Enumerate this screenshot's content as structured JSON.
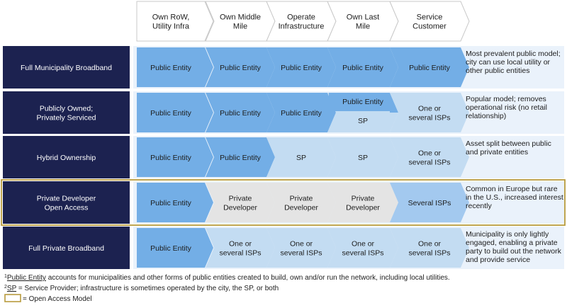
{
  "colors": {
    "navy": "#1c2250",
    "public": "#73aee6",
    "isp": "#c3dcf2",
    "isp_strong": "#a3c9ef",
    "developer": "#e4e4e4",
    "header_border": "#c9c9c9",
    "open_access": "#b89b3d"
  },
  "headers": [
    [
      "Own RoW,",
      "Utility Infra"
    ],
    [
      "Own Middle",
      "Mile"
    ],
    [
      "Operate",
      "Infrastructure"
    ],
    [
      "Own Last",
      "Mile"
    ],
    [
      "Service",
      "Customer"
    ]
  ],
  "rows": [
    {
      "label": [
        "Full Municipality Broadband"
      ],
      "open_access": false,
      "cells": [
        {
          "type": "public",
          "lines": [
            "Public Entity"
          ]
        },
        {
          "type": "public",
          "lines": [
            "Public Entity"
          ]
        },
        {
          "type": "public",
          "lines": [
            "Public Entity"
          ]
        },
        {
          "type": "public",
          "lines": [
            "Public Entity"
          ]
        },
        {
          "type": "public",
          "lines": [
            "Public Entity"
          ]
        }
      ],
      "description": [
        "Most prevalent public model;",
        "city can use local utility or",
        "other public entities"
      ]
    },
    {
      "label": [
        "Publicly Owned;",
        "Privately Serviced"
      ],
      "open_access": false,
      "cells": [
        {
          "type": "public",
          "lines": [
            "Public Entity"
          ]
        },
        {
          "type": "public",
          "lines": [
            "Public Entity"
          ]
        },
        {
          "type": "public",
          "lines": [
            "Public Entity"
          ]
        },
        {
          "type": "split",
          "top": "Public Entity",
          "bottom": "SP"
        },
        {
          "type": "isp",
          "lines": [
            "One or",
            "several ISPs"
          ]
        }
      ],
      "description": [
        "Popular model; removes",
        "operational risk (no retail",
        "relationship)"
      ]
    },
    {
      "label": [
        "Hybrid Ownership"
      ],
      "open_access": false,
      "cells": [
        {
          "type": "public",
          "lines": [
            "Public Entity"
          ]
        },
        {
          "type": "public",
          "lines": [
            "Public Entity"
          ]
        },
        {
          "type": "isp",
          "lines": [
            "SP"
          ]
        },
        {
          "type": "isp",
          "lines": [
            "SP"
          ]
        },
        {
          "type": "isp",
          "lines": [
            "One or",
            "several ISPs"
          ]
        }
      ],
      "description": [
        "Asset split between public",
        "and private entities"
      ]
    },
    {
      "label": [
        "Private Developer",
        "Open Access"
      ],
      "open_access": true,
      "cells": [
        {
          "type": "public",
          "lines": [
            "Public Entity"
          ]
        },
        {
          "type": "developer",
          "lines": [
            "Private",
            "Developer"
          ]
        },
        {
          "type": "developer",
          "lines": [
            "Private",
            "Developer"
          ]
        },
        {
          "type": "developer",
          "lines": [
            "Private",
            "Developer"
          ]
        },
        {
          "type": "isp_strong",
          "lines": [
            "Several ISPs"
          ]
        }
      ],
      "description": [
        "Common in Europe but rare",
        "in the U.S., increased interest",
        "recently"
      ]
    },
    {
      "label": [
        "Full Private Broadband"
      ],
      "open_access": false,
      "cells": [
        {
          "type": "public",
          "lines": [
            "Public Entity"
          ]
        },
        {
          "type": "isp",
          "lines": [
            "One or",
            "several ISPs"
          ]
        },
        {
          "type": "isp",
          "lines": [
            "One or",
            "several ISPs"
          ]
        },
        {
          "type": "isp",
          "lines": [
            "One or",
            "several ISPs"
          ]
        },
        {
          "type": "isp",
          "lines": [
            "One or",
            "several ISPs"
          ]
        }
      ],
      "description": [
        "Municipality is only lightly",
        "engaged, enabling a private",
        "party to build out the network",
        "and provide service"
      ]
    }
  ],
  "footnotes": {
    "note1_sup": "1",
    "note1_term": "Public Entity",
    "note1_rest": " accounts for  municipalities and other forms of public entities created to build, own and/or run the network, including local utilities.",
    "note2_sup": "2",
    "note2_term": "SP",
    "note2_rest": " = Service Provider; infrastructure is sometimes operated by the city, the SP, or both",
    "legend_text": "= Open Access Model"
  }
}
